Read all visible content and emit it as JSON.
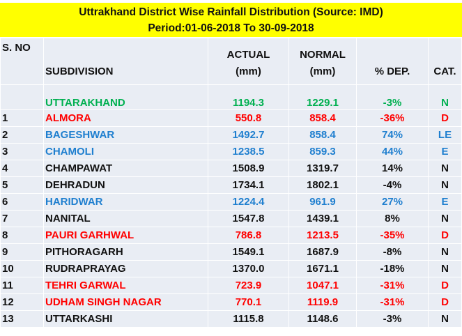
{
  "title": {
    "line1": "Uttrakhand District Wise Rainfall Distribution (Source: IMD)",
    "line2": "Period:01-06-2018 To 30-09-2018"
  },
  "headers": {
    "sno": "S. NO",
    "subdivision": "SUBDIVISION",
    "actual1": "ACTUAL",
    "actual2": "(mm)",
    "normal1": "NORMAL",
    "normal2": "(mm)",
    "dep": "% DEP.",
    "cat": "CAT."
  },
  "colors": {
    "normal": "#111111",
    "excess": "#1f7fcf",
    "deficient": "#ff0000",
    "state": "#00b050",
    "banner": "#ffff00"
  },
  "rows": [
    {
      "sno": "",
      "name": "UTTARAKHAND",
      "actual": "1194.3",
      "normal": "1229.1",
      "dep": "-3%",
      "cat": "N",
      "color": "green"
    },
    {
      "sno": "1",
      "name": "ALMORA",
      "actual": "550.8",
      "normal": "858.4",
      "dep": "-36%",
      "cat": "D",
      "color": "red"
    },
    {
      "sno": "2",
      "name": "BAGESHWAR",
      "actual": "1492.7",
      "normal": "858.4",
      "dep": "74%",
      "cat": "LE",
      "color": "blue"
    },
    {
      "sno": "3",
      "name": "CHAMOLI",
      "actual": "1238.5",
      "normal": "859.3",
      "dep": "44%",
      "cat": "E",
      "color": "blue"
    },
    {
      "sno": "4",
      "name": "CHAMPAWAT",
      "actual": "1508.9",
      "normal": "1319.7",
      "dep": "14%",
      "cat": "N",
      "color": "black"
    },
    {
      "sno": "5",
      "name": "DEHRADUN",
      "actual": "1734.1",
      "normal": "1802.1",
      "dep": "-4%",
      "cat": "N",
      "color": "black"
    },
    {
      "sno": "6",
      "name": "HARIDWAR",
      "actual": "1224.4",
      "normal": "961.9",
      "dep": "27%",
      "cat": "E",
      "color": "blue"
    },
    {
      "sno": "7",
      "name": "NANITAL",
      "actual": "1547.8",
      "normal": "1439.1",
      "dep": "8%",
      "cat": "N",
      "color": "black"
    },
    {
      "sno": "8",
      "name": "PAURI GARHWAL",
      "actual": "786.8",
      "normal": "1213.5",
      "dep": "-35%",
      "cat": "D",
      "color": "red"
    },
    {
      "sno": "9",
      "name": "PITHORAGARH",
      "actual": "1549.1",
      "normal": "1687.9",
      "dep": "-8%",
      "cat": "N",
      "color": "black"
    },
    {
      "sno": "10",
      "name": "RUDRAPRAYAG",
      "actual": "1370.0",
      "normal": "1671.1",
      "dep": "-18%",
      "cat": "N",
      "color": "black"
    },
    {
      "sno": "11",
      "name": "TEHRI GARWAL",
      "actual": "723.9",
      "normal": "1047.1",
      "dep": "-31%",
      "cat": "D",
      "color": "red"
    },
    {
      "sno": "12",
      "name": "UDHAM SINGH NAGAR",
      "actual": "770.1",
      "normal": "1119.9",
      "dep": "-31%",
      "cat": "D",
      "color": "red"
    },
    {
      "sno": "13",
      "name": "UTTARKASHI",
      "actual": "1115.8",
      "normal": "1148.6",
      "dep": "-3%",
      "cat": "N",
      "color": "black"
    }
  ]
}
